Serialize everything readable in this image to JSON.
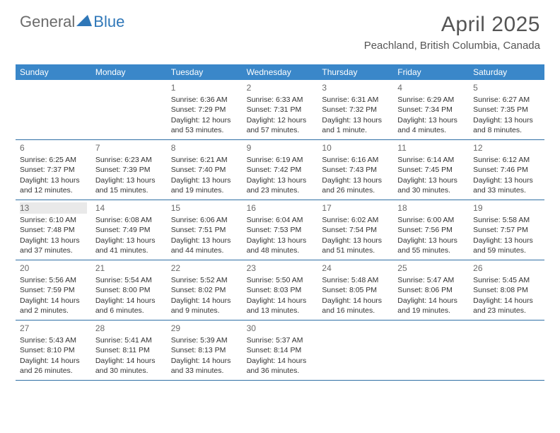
{
  "logo": {
    "text1": "General",
    "text2": "Blue"
  },
  "title": "April 2025",
  "location": "Peachland, British Columbia, Canada",
  "header_bg": "#3a87c9",
  "border_color": "#2f6fa5",
  "gray_band": "#e9e9e9",
  "weekdays": [
    "Sunday",
    "Monday",
    "Tuesday",
    "Wednesday",
    "Thursday",
    "Friday",
    "Saturday"
  ],
  "weeks": [
    [
      {
        "num": "",
        "sunrise": "",
        "sunset": "",
        "daylight": ""
      },
      {
        "num": "",
        "sunrise": "",
        "sunset": "",
        "daylight": ""
      },
      {
        "num": "1",
        "sunrise": "Sunrise: 6:36 AM",
        "sunset": "Sunset: 7:29 PM",
        "daylight": "Daylight: 12 hours and 53 minutes."
      },
      {
        "num": "2",
        "sunrise": "Sunrise: 6:33 AM",
        "sunset": "Sunset: 7:31 PM",
        "daylight": "Daylight: 12 hours and 57 minutes."
      },
      {
        "num": "3",
        "sunrise": "Sunrise: 6:31 AM",
        "sunset": "Sunset: 7:32 PM",
        "daylight": "Daylight: 13 hours and 1 minute."
      },
      {
        "num": "4",
        "sunrise": "Sunrise: 6:29 AM",
        "sunset": "Sunset: 7:34 PM",
        "daylight": "Daylight: 13 hours and 4 minutes."
      },
      {
        "num": "5",
        "sunrise": "Sunrise: 6:27 AM",
        "sunset": "Sunset: 7:35 PM",
        "daylight": "Daylight: 13 hours and 8 minutes."
      }
    ],
    [
      {
        "num": "6",
        "sunrise": "Sunrise: 6:25 AM",
        "sunset": "Sunset: 7:37 PM",
        "daylight": "Daylight: 13 hours and 12 minutes."
      },
      {
        "num": "7",
        "sunrise": "Sunrise: 6:23 AM",
        "sunset": "Sunset: 7:39 PM",
        "daylight": "Daylight: 13 hours and 15 minutes."
      },
      {
        "num": "8",
        "sunrise": "Sunrise: 6:21 AM",
        "sunset": "Sunset: 7:40 PM",
        "daylight": "Daylight: 13 hours and 19 minutes."
      },
      {
        "num": "9",
        "sunrise": "Sunrise: 6:19 AM",
        "sunset": "Sunset: 7:42 PM",
        "daylight": "Daylight: 13 hours and 23 minutes."
      },
      {
        "num": "10",
        "sunrise": "Sunrise: 6:16 AM",
        "sunset": "Sunset: 7:43 PM",
        "daylight": "Daylight: 13 hours and 26 minutes."
      },
      {
        "num": "11",
        "sunrise": "Sunrise: 6:14 AM",
        "sunset": "Sunset: 7:45 PM",
        "daylight": "Daylight: 13 hours and 30 minutes."
      },
      {
        "num": "12",
        "sunrise": "Sunrise: 6:12 AM",
        "sunset": "Sunset: 7:46 PM",
        "daylight": "Daylight: 13 hours and 33 minutes."
      }
    ],
    [
      {
        "num": "13",
        "sunrise": "Sunrise: 6:10 AM",
        "sunset": "Sunset: 7:48 PM",
        "daylight": "Daylight: 13 hours and 37 minutes."
      },
      {
        "num": "14",
        "sunrise": "Sunrise: 6:08 AM",
        "sunset": "Sunset: 7:49 PM",
        "daylight": "Daylight: 13 hours and 41 minutes."
      },
      {
        "num": "15",
        "sunrise": "Sunrise: 6:06 AM",
        "sunset": "Sunset: 7:51 PM",
        "daylight": "Daylight: 13 hours and 44 minutes."
      },
      {
        "num": "16",
        "sunrise": "Sunrise: 6:04 AM",
        "sunset": "Sunset: 7:53 PM",
        "daylight": "Daylight: 13 hours and 48 minutes."
      },
      {
        "num": "17",
        "sunrise": "Sunrise: 6:02 AM",
        "sunset": "Sunset: 7:54 PM",
        "daylight": "Daylight: 13 hours and 51 minutes."
      },
      {
        "num": "18",
        "sunrise": "Sunrise: 6:00 AM",
        "sunset": "Sunset: 7:56 PM",
        "daylight": "Daylight: 13 hours and 55 minutes."
      },
      {
        "num": "19",
        "sunrise": "Sunrise: 5:58 AM",
        "sunset": "Sunset: 7:57 PM",
        "daylight": "Daylight: 13 hours and 59 minutes."
      }
    ],
    [
      {
        "num": "20",
        "sunrise": "Sunrise: 5:56 AM",
        "sunset": "Sunset: 7:59 PM",
        "daylight": "Daylight: 14 hours and 2 minutes."
      },
      {
        "num": "21",
        "sunrise": "Sunrise: 5:54 AM",
        "sunset": "Sunset: 8:00 PM",
        "daylight": "Daylight: 14 hours and 6 minutes."
      },
      {
        "num": "22",
        "sunrise": "Sunrise: 5:52 AM",
        "sunset": "Sunset: 8:02 PM",
        "daylight": "Daylight: 14 hours and 9 minutes."
      },
      {
        "num": "23",
        "sunrise": "Sunrise: 5:50 AM",
        "sunset": "Sunset: 8:03 PM",
        "daylight": "Daylight: 14 hours and 13 minutes."
      },
      {
        "num": "24",
        "sunrise": "Sunrise: 5:48 AM",
        "sunset": "Sunset: 8:05 PM",
        "daylight": "Daylight: 14 hours and 16 minutes."
      },
      {
        "num": "25",
        "sunrise": "Sunrise: 5:47 AM",
        "sunset": "Sunset: 8:06 PM",
        "daylight": "Daylight: 14 hours and 19 minutes."
      },
      {
        "num": "26",
        "sunrise": "Sunrise: 5:45 AM",
        "sunset": "Sunset: 8:08 PM",
        "daylight": "Daylight: 14 hours and 23 minutes."
      }
    ],
    [
      {
        "num": "27",
        "sunrise": "Sunrise: 5:43 AM",
        "sunset": "Sunset: 8:10 PM",
        "daylight": "Daylight: 14 hours and 26 minutes."
      },
      {
        "num": "28",
        "sunrise": "Sunrise: 5:41 AM",
        "sunset": "Sunset: 8:11 PM",
        "daylight": "Daylight: 14 hours and 30 minutes."
      },
      {
        "num": "29",
        "sunrise": "Sunrise: 5:39 AM",
        "sunset": "Sunset: 8:13 PM",
        "daylight": "Daylight: 14 hours and 33 minutes."
      },
      {
        "num": "30",
        "sunrise": "Sunrise: 5:37 AM",
        "sunset": "Sunset: 8:14 PM",
        "daylight": "Daylight: 14 hours and 36 minutes."
      },
      {
        "num": "",
        "sunrise": "",
        "sunset": "",
        "daylight": ""
      },
      {
        "num": "",
        "sunrise": "",
        "sunset": "",
        "daylight": ""
      },
      {
        "num": "",
        "sunrise": "",
        "sunset": "",
        "daylight": ""
      }
    ]
  ],
  "gray_band_cells": [
    [
      2,
      0
    ]
  ]
}
